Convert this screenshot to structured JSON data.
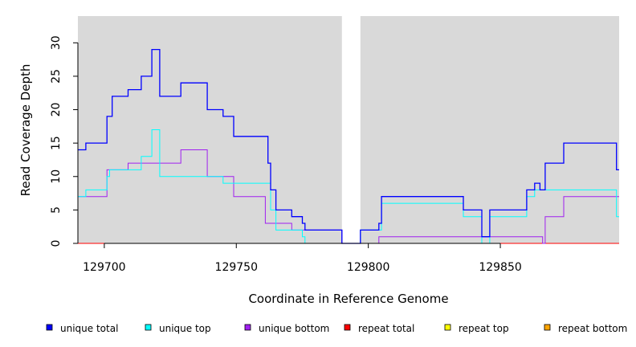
{
  "chart_data": {
    "type": "line",
    "step": true,
    "xlabel": "Coordinate in Reference Genome",
    "ylabel": "Read Coverage Depth",
    "xlim": [
      129690,
      129895
    ],
    "ylim": [
      0,
      34
    ],
    "x_ticks": [
      129700,
      129750,
      129800,
      129850
    ],
    "y_ticks": [
      0,
      5,
      10,
      15,
      20,
      25,
      30
    ],
    "background": "#d9d9d9",
    "gap": [
      129790,
      129797
    ],
    "legend_position": "bottom",
    "series": [
      {
        "name": "unique total",
        "color": "#0000ff",
        "points": [
          [
            129690,
            14
          ],
          [
            129693,
            15
          ],
          [
            129701,
            19
          ],
          [
            129703,
            22
          ],
          [
            129709,
            23
          ],
          [
            129714,
            25
          ],
          [
            129718,
            29
          ],
          [
            129721,
            22
          ],
          [
            129729,
            24
          ],
          [
            129739,
            20
          ],
          [
            129745,
            19
          ],
          [
            129749,
            16
          ],
          [
            129762,
            12
          ],
          [
            129763,
            8
          ],
          [
            129765,
            5
          ],
          [
            129771,
            4
          ],
          [
            129775,
            3
          ],
          [
            129776,
            2
          ],
          [
            129790,
            0
          ],
          [
            129797,
            2
          ],
          [
            129804,
            3
          ],
          [
            129805,
            7
          ],
          [
            129836,
            5
          ],
          [
            129843,
            1
          ],
          [
            129846,
            5
          ],
          [
            129860,
            8
          ],
          [
            129863,
            9
          ],
          [
            129865,
            8
          ],
          [
            129867,
            12
          ],
          [
            129874,
            15
          ],
          [
            129894,
            11
          ],
          [
            129895,
            11
          ]
        ]
      },
      {
        "name": "unique top",
        "color": "#00ffff",
        "points": [
          [
            129690,
            7
          ],
          [
            129693,
            8
          ],
          [
            129701,
            10
          ],
          [
            129702,
            11
          ],
          [
            129709,
            11
          ],
          [
            129714,
            13
          ],
          [
            129718,
            17
          ],
          [
            129721,
            10
          ],
          [
            129729,
            10
          ],
          [
            129739,
            10
          ],
          [
            129745,
            9
          ],
          [
            129749,
            9
          ],
          [
            129762,
            9
          ],
          [
            129763,
            5
          ],
          [
            129765,
            2
          ],
          [
            129771,
            2
          ],
          [
            129775,
            1
          ],
          [
            129776,
            0
          ],
          [
            129790,
            0
          ],
          [
            129797,
            2
          ],
          [
            129804,
            2
          ],
          [
            129805,
            6
          ],
          [
            129836,
            4
          ],
          [
            129843,
            0
          ],
          [
            129846,
            4
          ],
          [
            129860,
            7
          ],
          [
            129863,
            8
          ],
          [
            129865,
            8
          ],
          [
            129867,
            8
          ],
          [
            129874,
            8
          ],
          [
            129894,
            4
          ],
          [
            129895,
            4
          ]
        ]
      },
      {
        "name": "unique bottom",
        "color": "#a020f0",
        "points": [
          [
            129690,
            7
          ],
          [
            129701,
            11
          ],
          [
            129709,
            12
          ],
          [
            129729,
            14
          ],
          [
            129739,
            10
          ],
          [
            129749,
            7
          ],
          [
            129761,
            3
          ],
          [
            129765,
            3
          ],
          [
            129771,
            2
          ],
          [
            129776,
            2
          ],
          [
            129790,
            0
          ],
          [
            129797,
            0
          ],
          [
            129804,
            1
          ],
          [
            129866,
            0
          ],
          [
            129867,
            4
          ],
          [
            129874,
            7
          ],
          [
            129895,
            7
          ]
        ]
      },
      {
        "name": "repeat total",
        "color": "#ff0000",
        "points": [
          [
            129690,
            0
          ],
          [
            129895,
            0
          ]
        ]
      },
      {
        "name": "repeat top",
        "color": "#ffff00",
        "points": [
          [
            129690,
            0
          ],
          [
            129895,
            0
          ]
        ]
      },
      {
        "name": "repeat bottom",
        "color": "#ffa500",
        "points": [
          [
            129690,
            0
          ],
          [
            129895,
            0
          ]
        ]
      }
    ]
  }
}
